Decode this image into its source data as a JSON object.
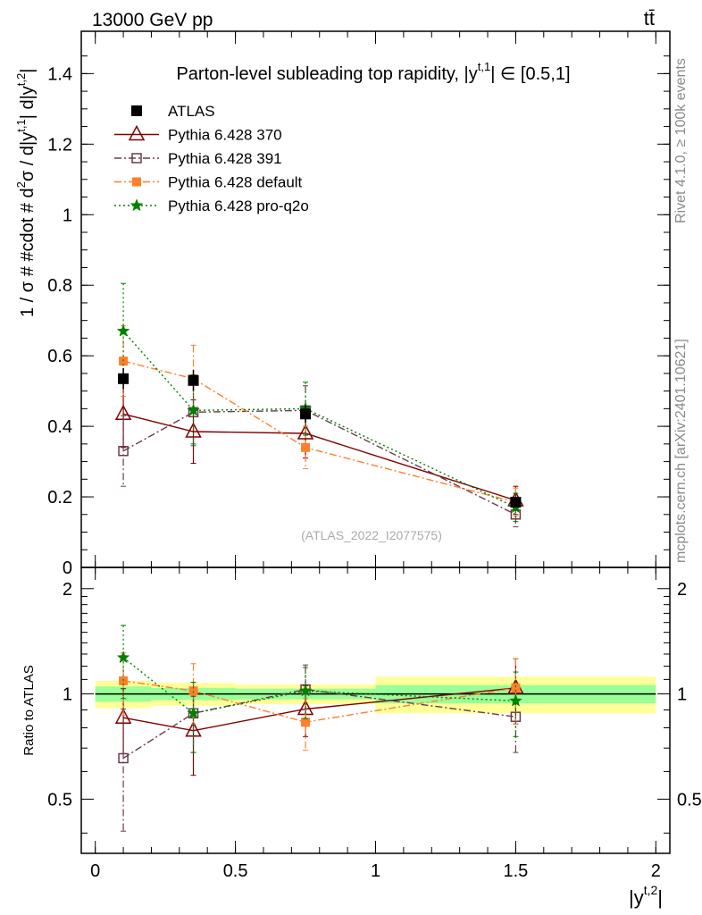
{
  "header": {
    "energy_label": "13000 GeV pp",
    "process_label": "tt̄"
  },
  "side_labels": {
    "rivet": "Rivet 4.1.0, ≥ 100k events",
    "mcplots": "mcplots.cern.ch [arXiv:2401.10621]"
  },
  "chart_data": {
    "type": "line",
    "title": "Parton-level subleading top rapidity, |y^{t,1}| ∈ [0.5,1]",
    "watermark": "(ATLAS_2022_I2077575)",
    "xlabel": "|y^{t,2}|",
    "ylabel": "1 / σ # #cdot # d²σ / d|y^{t,1}| d|y^{t,2}|",
    "ratio_ylabel": "Ratio to ATLAS",
    "xlim": [
      -0.05,
      2.05
    ],
    "ylim": [
      0,
      1.52
    ],
    "ratio_ylim": [
      0.35,
      2.3
    ],
    "x_ticks": [
      "0",
      "0.5",
      "1",
      "1.5",
      "2"
    ],
    "y_ticks": [
      "0",
      "0.2",
      "0.4",
      "0.6",
      "0.8",
      "1",
      "1.2",
      "1.4"
    ],
    "ratio_y_ticks": [
      "0.5",
      "1",
      "2"
    ],
    "bins": [
      [
        0,
        0.2
      ],
      [
        0.2,
        0.5
      ],
      [
        0.5,
        1.0
      ],
      [
        1.0,
        2.0
      ]
    ],
    "x": [
      0.1,
      0.35,
      0.75,
      1.5
    ],
    "series": [
      {
        "name": "ATLAS",
        "color": "#000000",
        "marker": "square",
        "values": [
          0.535,
          0.53,
          0.435,
          0.185
        ]
      },
      {
        "name": "Pythia 6.428 370",
        "color": "#800000",
        "marker": "triangle",
        "dash": "solid",
        "values": [
          0.435,
          0.385,
          0.38,
          0.19
        ],
        "errors": [
          0.095,
          0.09,
          0.07,
          0.04
        ],
        "ratio": [
          0.855,
          0.785,
          0.905,
          1.04
        ],
        "ratio_errors": [
          0.18,
          0.2,
          0.15,
          0.22
        ]
      },
      {
        "name": "Pythia 6.428 391",
        "color": "#6b3a50",
        "marker": "open-square",
        "dash": "dashdot",
        "values": [
          0.33,
          0.44,
          0.445,
          0.15
        ],
        "errors": [
          0.1,
          0.09,
          0.07,
          0.035
        ],
        "ratio": [
          0.655,
          0.88,
          1.03,
          0.86
        ],
        "ratio_errors": [
          0.25,
          0.2,
          0.18,
          0.18
        ]
      },
      {
        "name": "Pythia 6.428 default",
        "color": "#ff7f2a",
        "marker": "filled-square",
        "dash": "dashdot",
        "values": [
          0.585,
          0.535,
          0.34,
          0.185
        ],
        "errors": [
          0.1,
          0.095,
          0.06,
          0.04
        ],
        "ratio": [
          1.09,
          1.02,
          0.83,
          1.04
        ],
        "ratio_errors": [
          0.22,
          0.2,
          0.14,
          0.22
        ]
      },
      {
        "name": "Pythia 6.428 pro-q2o",
        "color": "#008000",
        "marker": "star",
        "dash": "dotted",
        "values": [
          0.67,
          0.445,
          0.45,
          0.17
        ],
        "errors": [
          0.135,
          0.1,
          0.075,
          0.04
        ],
        "ratio": [
          1.27,
          0.88,
          1.02,
          0.955
        ],
        "ratio_errors": [
          0.3,
          0.2,
          0.17,
          0.2
        ]
      }
    ],
    "data_errors": [
      0.03,
      0.03,
      0.025,
      0.012
    ],
    "ratio_band_inner": [
      0.05,
      0.04,
      0.035,
      0.06
    ],
    "ratio_band_outer": [
      0.09,
      0.075,
      0.065,
      0.12
    ]
  }
}
